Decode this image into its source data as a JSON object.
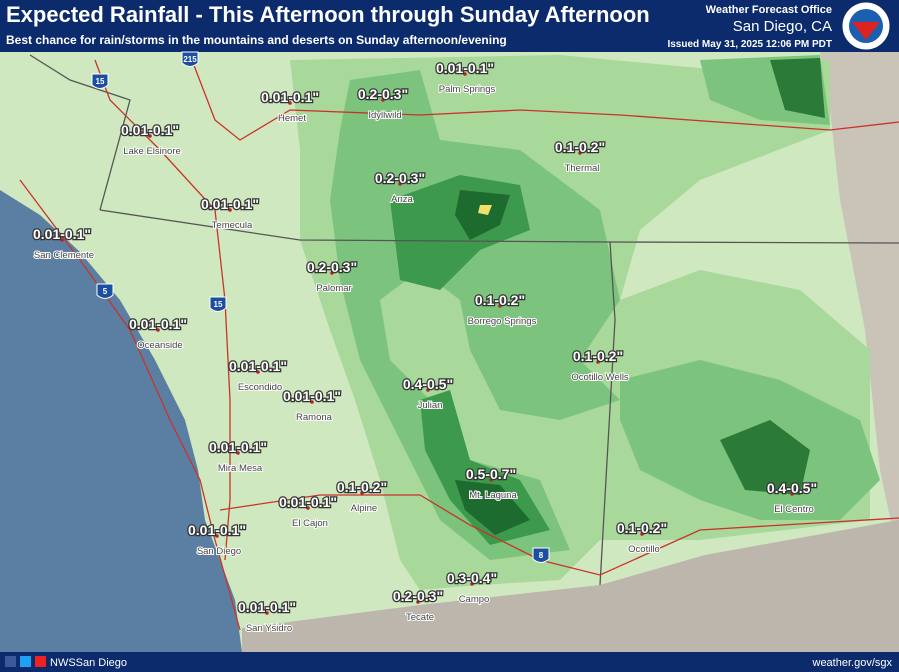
{
  "header": {
    "title": "Expected Rainfall - This Afternoon through Sunday Afternoon",
    "subtitle": "Best chance for rain/storms in the mountains and deserts on Sunday afternoon/evening",
    "office": "Weather Forecast Office",
    "office_city": "San Diego, CA",
    "issued": "Issued May 31, 2025 12:06 PM PDT"
  },
  "locations": [
    {
      "amount": "0.01-0.1\"",
      "name": "Hemet"
    },
    {
      "amount": "0.2-0.3\"",
      "name": "Idyllwild"
    },
    {
      "amount": "0.01-0.1\"",
      "name": "Palm Springs"
    },
    {
      "amount": "0.01-0.1\"",
      "name": "Lake Elsinore"
    },
    {
      "amount": "0.1-0.2\"",
      "name": "Thermal"
    },
    {
      "amount": "0.2-0.3\"",
      "name": "Anza"
    },
    {
      "amount": "0.01-0.1\"",
      "name": "Temecula"
    },
    {
      "amount": "0.01-0.1\"",
      "name": "San Clemente"
    },
    {
      "amount": "0.2-0.3\"",
      "name": "Palomar"
    },
    {
      "amount": "0.1-0.2\"",
      "name": "Borrego Springs"
    },
    {
      "amount": "0.01-0.1\"",
      "name": "Oceanside"
    },
    {
      "amount": "0.1-0.2\"",
      "name": "Ocotillo Wells"
    },
    {
      "amount": "0.01-0.1\"",
      "name": "Escondido"
    },
    {
      "amount": "0.4-0.5\"",
      "name": "Julian"
    },
    {
      "amount": "0.01-0.1\"",
      "name": "Ramona"
    },
    {
      "amount": "0.01-0.1\"",
      "name": "Mira Mesa"
    },
    {
      "amount": "0.5-0.7\"",
      "name": "Mt. Laguna"
    },
    {
      "amount": "0.4-0.5\"",
      "name": "El Centro"
    },
    {
      "amount": "0.1-0.2\"",
      "name": "Alpine"
    },
    {
      "amount": "0.01-0.1\"",
      "name": "El Cajon"
    },
    {
      "amount": "0.01-0.1\"",
      "name": "San Diego"
    },
    {
      "amount": "0.1-0.2\"",
      "name": "Ocotillo"
    },
    {
      "amount": "0.3-0.4\"",
      "name": "Campo"
    },
    {
      "amount": "0.2-0.3\"",
      "name": "Tecate"
    },
    {
      "amount": "0.01-0.1\"",
      "name": "San Ysidro"
    }
  ],
  "highways": [
    "15",
    "215",
    "5",
    "15",
    "8"
  ],
  "footer": {
    "social": "NWSSan Diego",
    "url": "weather.gov/sgx"
  }
}
